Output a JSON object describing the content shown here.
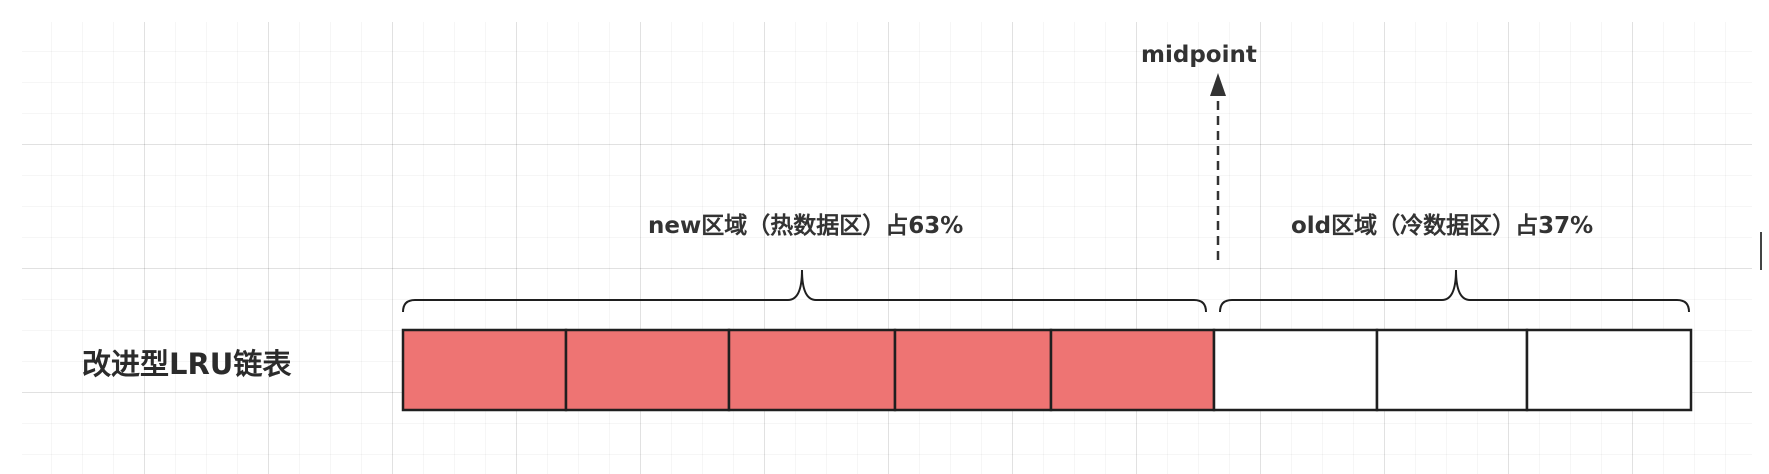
{
  "list_label": "改进型LRU链表",
  "midpoint_label": "midpoint",
  "new_region": {
    "label": "new区域（热数据区）占63%",
    "cells": 5,
    "fill": "#ee7473"
  },
  "old_region": {
    "label": "old区域（冷数据区）占37%",
    "cells": 3,
    "fill": "#ffffff"
  },
  "colors": {
    "stroke": "#1f1f1f",
    "text": "#333333",
    "grid": "#e6e6e6"
  }
}
